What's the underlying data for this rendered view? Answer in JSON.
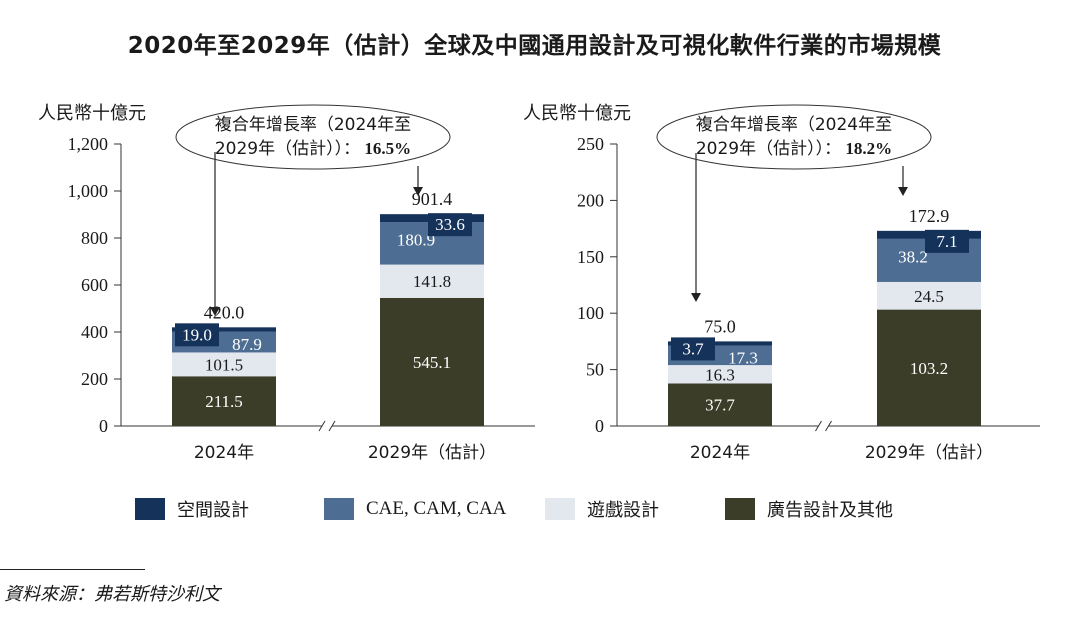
{
  "title": "2020年至2029年（估計）全球及中國通用設計及可視化軟件行業的市場規模",
  "source": "資料來源：弗若斯特沙利文",
  "colors": {
    "spatial": "#14325a",
    "cae": "#4d6d93",
    "game": "#e3e7ee",
    "ad": "#3c3d28",
    "dark_text": "#1a1a1a",
    "light_text": "#ffffff"
  },
  "legend": [
    {
      "key": "spatial",
      "label": "空間設計"
    },
    {
      "key": "cae",
      "label": "CAE, CAM, CAA"
    },
    {
      "key": "game",
      "label": "遊戲設計"
    },
    {
      "key": "ad",
      "label": "廣告設計及其他"
    }
  ],
  "chart_data": [
    {
      "type": "bar",
      "stacked": true,
      "ylabel": "人民幣十億元",
      "ylim": [
        0,
        1200
      ],
      "yticks": [
        0,
        200,
        400,
        600,
        800,
        1000,
        1200
      ],
      "ytick_labels": [
        "0",
        "200",
        "400",
        "600",
        "800",
        "1,000",
        "1,200"
      ],
      "categories": [
        "2024年",
        "2029年（估計）"
      ],
      "totals": [
        420.0,
        901.4
      ],
      "total_labels": [
        "420.0",
        "901.4"
      ],
      "series": [
        {
          "key": "ad",
          "name": "廣告設計及其他",
          "values": [
            211.5,
            545.1
          ],
          "labels": [
            "211.5",
            "545.1"
          ]
        },
        {
          "key": "game",
          "name": "遊戲設計",
          "values": [
            101.5,
            141.8
          ],
          "labels": [
            "101.5",
            "141.8"
          ]
        },
        {
          "key": "cae",
          "name": "CAE, CAM, CAA",
          "values": [
            87.9,
            180.9
          ],
          "labels": [
            "87.9",
            "180.9"
          ]
        },
        {
          "key": "spatial",
          "name": "空間設計",
          "values": [
            19.0,
            33.6
          ],
          "labels": [
            "19.0",
            "33.6"
          ]
        }
      ],
      "cagr": {
        "line1": "複合年增長率（2024年至",
        "line2": "2029年（估計））：",
        "value": "16.5%"
      }
    },
    {
      "type": "bar",
      "stacked": true,
      "ylabel": "人民幣十億元",
      "ylim": [
        0,
        250
      ],
      "yticks": [
        0,
        50,
        100,
        150,
        200,
        250
      ],
      "ytick_labels": [
        "0",
        "50",
        "100",
        "150",
        "200",
        "250"
      ],
      "categories": [
        "2024年",
        "2029年（估計）"
      ],
      "totals": [
        75.0,
        172.9
      ],
      "total_labels": [
        "75.0",
        "172.9"
      ],
      "series": [
        {
          "key": "ad",
          "name": "廣告設計及其他",
          "values": [
            37.7,
            103.2
          ],
          "labels": [
            "37.7",
            "103.2"
          ]
        },
        {
          "key": "game",
          "name": "遊戲設計",
          "values": [
            16.3,
            24.5
          ],
          "labels": [
            "16.3",
            "24.5"
          ]
        },
        {
          "key": "cae",
          "name": "CAE, CAM, CAA",
          "values": [
            17.3,
            38.2
          ],
          "labels": [
            "17.3",
            "38.2"
          ]
        },
        {
          "key": "spatial",
          "name": "空間設計",
          "values": [
            3.7,
            7.1
          ],
          "labels": [
            "3.7",
            "7.1"
          ]
        }
      ],
      "cagr": {
        "line1": "複合年增長率（2024年至",
        "line2": "2029年（估計））：",
        "value": "18.2%"
      }
    }
  ]
}
